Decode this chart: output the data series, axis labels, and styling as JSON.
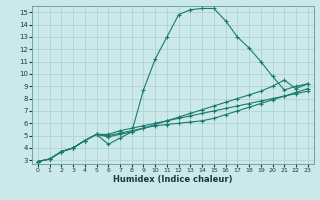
{
  "xlabel": "Humidex (Indice chaleur)",
  "ylabel": "",
  "xlim": [
    -0.5,
    23.5
  ],
  "ylim": [
    2.7,
    15.5
  ],
  "xticks": [
    0,
    1,
    2,
    3,
    4,
    5,
    6,
    7,
    8,
    9,
    10,
    11,
    12,
    13,
    14,
    15,
    16,
    17,
    18,
    19,
    20,
    21,
    22,
    23
  ],
  "yticks": [
    3,
    4,
    5,
    6,
    7,
    8,
    9,
    10,
    11,
    12,
    13,
    14,
    15
  ],
  "bg_color": "#cce9e9",
  "line_color": "#1a7a6e",
  "grid_color": "#aacece",
  "line1_x": [
    0,
    1,
    2,
    3,
    4,
    5,
    6,
    7,
    8,
    9,
    10,
    11,
    12,
    13,
    14,
    15,
    16,
    17,
    18,
    19,
    20,
    21,
    22,
    23
  ],
  "line1_y": [
    2.9,
    3.1,
    3.7,
    4.0,
    4.6,
    5.1,
    4.3,
    4.8,
    5.3,
    8.7,
    11.2,
    13.0,
    14.8,
    15.2,
    15.3,
    15.3,
    14.3,
    13.0,
    12.1,
    11.0,
    9.8,
    8.7,
    9.0,
    9.2
  ],
  "line2_x": [
    0,
    1,
    2,
    3,
    4,
    5,
    6,
    7,
    8,
    9,
    10,
    11,
    12,
    13,
    14,
    15,
    16,
    17,
    18,
    19,
    20,
    21,
    22,
    23
  ],
  "line2_y": [
    2.9,
    3.1,
    3.7,
    4.0,
    4.6,
    5.1,
    5.1,
    5.4,
    5.6,
    5.8,
    6.0,
    6.2,
    6.4,
    6.6,
    6.8,
    7.0,
    7.2,
    7.4,
    7.6,
    7.8,
    8.0,
    8.2,
    8.4,
    8.6
  ],
  "line3_x": [
    0,
    1,
    2,
    3,
    4,
    5,
    6,
    7,
    8,
    9,
    10,
    11,
    12,
    13,
    14,
    15,
    16,
    17,
    18,
    19,
    20,
    21,
    22,
    23
  ],
  "line3_y": [
    2.9,
    3.1,
    3.7,
    4.0,
    4.6,
    5.1,
    4.9,
    5.1,
    5.3,
    5.6,
    5.9,
    6.2,
    6.5,
    6.8,
    7.1,
    7.4,
    7.7,
    8.0,
    8.3,
    8.6,
    9.0,
    9.5,
    8.8,
    9.2
  ],
  "line4_x": [
    0,
    1,
    2,
    3,
    4,
    5,
    6,
    7,
    8,
    9,
    10,
    11,
    12,
    13,
    14,
    15,
    16,
    17,
    18,
    19,
    20,
    21,
    22,
    23
  ],
  "line4_y": [
    2.9,
    3.1,
    3.7,
    4.0,
    4.6,
    5.1,
    5.0,
    5.2,
    5.4,
    5.6,
    5.8,
    5.9,
    6.0,
    6.1,
    6.2,
    6.4,
    6.7,
    7.0,
    7.3,
    7.6,
    7.9,
    8.2,
    8.5,
    8.8
  ]
}
